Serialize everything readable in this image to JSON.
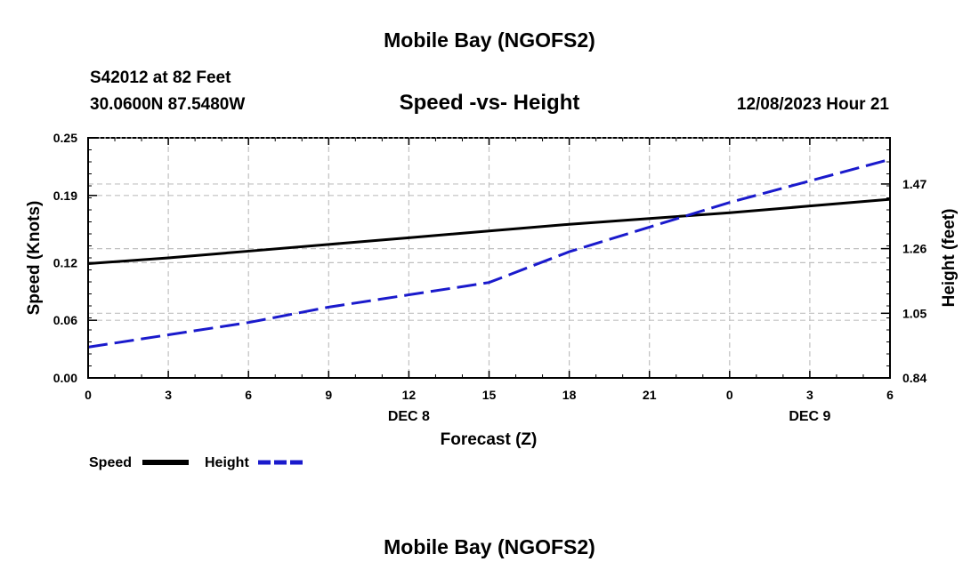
{
  "header": {
    "title_top": "Mobile Bay (NGOFS2)",
    "station": "S42012 at 82 Feet",
    "coords": "30.0600N  87.5480W",
    "subtitle": "Speed -vs- Height",
    "datetime": "12/08/2023 Hour 21",
    "title_bottom": "Mobile Bay (NGOFS2)"
  },
  "legend": {
    "speed_label": "Speed",
    "height_label": "Height"
  },
  "colors": {
    "speed": "#000000",
    "height": "#1a1acc",
    "grid": "#c0c0c0"
  },
  "chart_data": {
    "type": "line",
    "xlabel": "Forecast (Z)",
    "ylabel": "Speed (Knots)",
    "y2label": "Height (feet)",
    "x": [
      0,
      3,
      6,
      9,
      12,
      15,
      18,
      21,
      24,
      27,
      30
    ],
    "x_tick_labels": [
      "0",
      "3",
      "6",
      "9",
      "12",
      "15",
      "18",
      "21",
      "0",
      "3",
      "6"
    ],
    "date_labels": [
      {
        "x": 12,
        "label": "DEC 8"
      },
      {
        "x": 27,
        "label": "DEC 9"
      }
    ],
    "xlim": [
      0,
      30
    ],
    "ylim": [
      0,
      0.25
    ],
    "y_ticks": [
      0.0,
      0.06,
      0.12,
      0.19,
      0.25
    ],
    "y_tick_labels": [
      "0.00",
      "0.06",
      "0.12",
      "0.19",
      "0.25"
    ],
    "y2lim": [
      0.84,
      1.62
    ],
    "y2_ticks": [
      0.84,
      1.05,
      1.26,
      1.47
    ],
    "y2_tick_labels": [
      "0.84",
      "1.05",
      "1.26",
      "1.47"
    ],
    "grid": true,
    "legend_position": "bottom-left",
    "series": [
      {
        "name": "Speed",
        "axis": "left",
        "style": "solid",
        "x": [
          0,
          3,
          6,
          9,
          12,
          15,
          18,
          21,
          24,
          27,
          30
        ],
        "values": [
          0.119,
          0.125,
          0.132,
          0.139,
          0.146,
          0.153,
          0.16,
          0.166,
          0.172,
          0.179,
          0.186
        ]
      },
      {
        "name": "Height",
        "axis": "right",
        "style": "dashed",
        "x": [
          0,
          3,
          6,
          9,
          12,
          15,
          18,
          21,
          24,
          27,
          30
        ],
        "values": [
          0.94,
          0.98,
          1.02,
          1.07,
          1.11,
          1.15,
          1.25,
          1.33,
          1.41,
          1.48,
          1.55
        ]
      }
    ]
  }
}
